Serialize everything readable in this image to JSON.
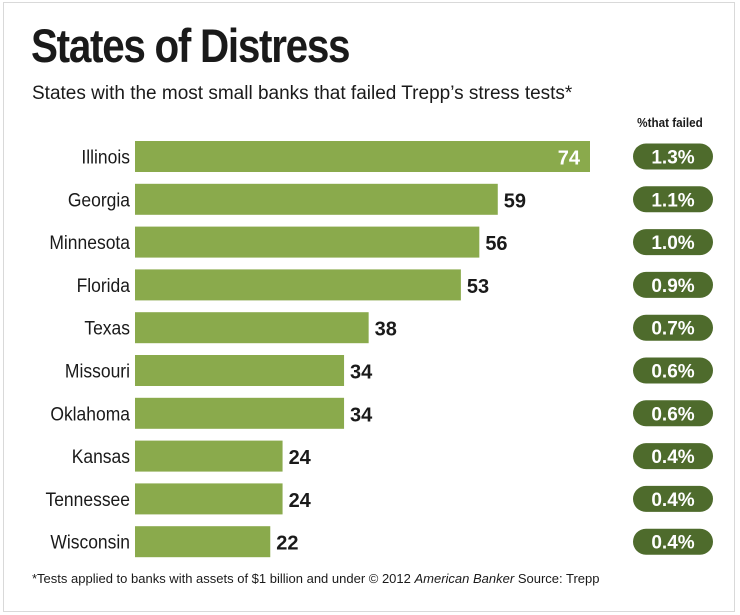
{
  "chart_data": {
    "type": "bar",
    "orientation": "horizontal",
    "title": "States of Distress",
    "subtitle": "States with the most small banks that failed Trepp’s stress tests*",
    "categories": [
      "Illinois",
      "Georgia",
      "Minnesota",
      "Florida",
      "Texas",
      "Missouri",
      "Oklahoma",
      "Kansas",
      "Tennessee",
      "Wisconsin"
    ],
    "values": [
      74,
      59,
      56,
      53,
      38,
      34,
      34,
      24,
      24,
      22
    ],
    "value_labels": [
      "74",
      "59",
      "56",
      "53",
      "38",
      "34",
      "34",
      "24",
      "24",
      "22"
    ],
    "percent_header": "%that failed",
    "percent_labels": [
      "1.3%",
      "1.1%",
      "1.0%",
      "0.9%",
      "0.7%",
      "0.6%",
      "0.6%",
      "0.4%",
      "0.4%",
      "0.4%"
    ],
    "xlim": [
      0,
      74
    ],
    "grid": false,
    "legend": "none"
  },
  "footer": {
    "note": "*Tests applied to banks with assets of $1 billion and under  © 2012 ",
    "publisher": "American Banker",
    "source": "  Source: Trepp"
  },
  "colors": {
    "bar": "#8aaa4c",
    "pill": "#4e6b2c",
    "pill_text": "#ffffff",
    "inside_label": "#ffffff",
    "outside_label": "#1a1a1a",
    "text": "#1a1a1a"
  }
}
